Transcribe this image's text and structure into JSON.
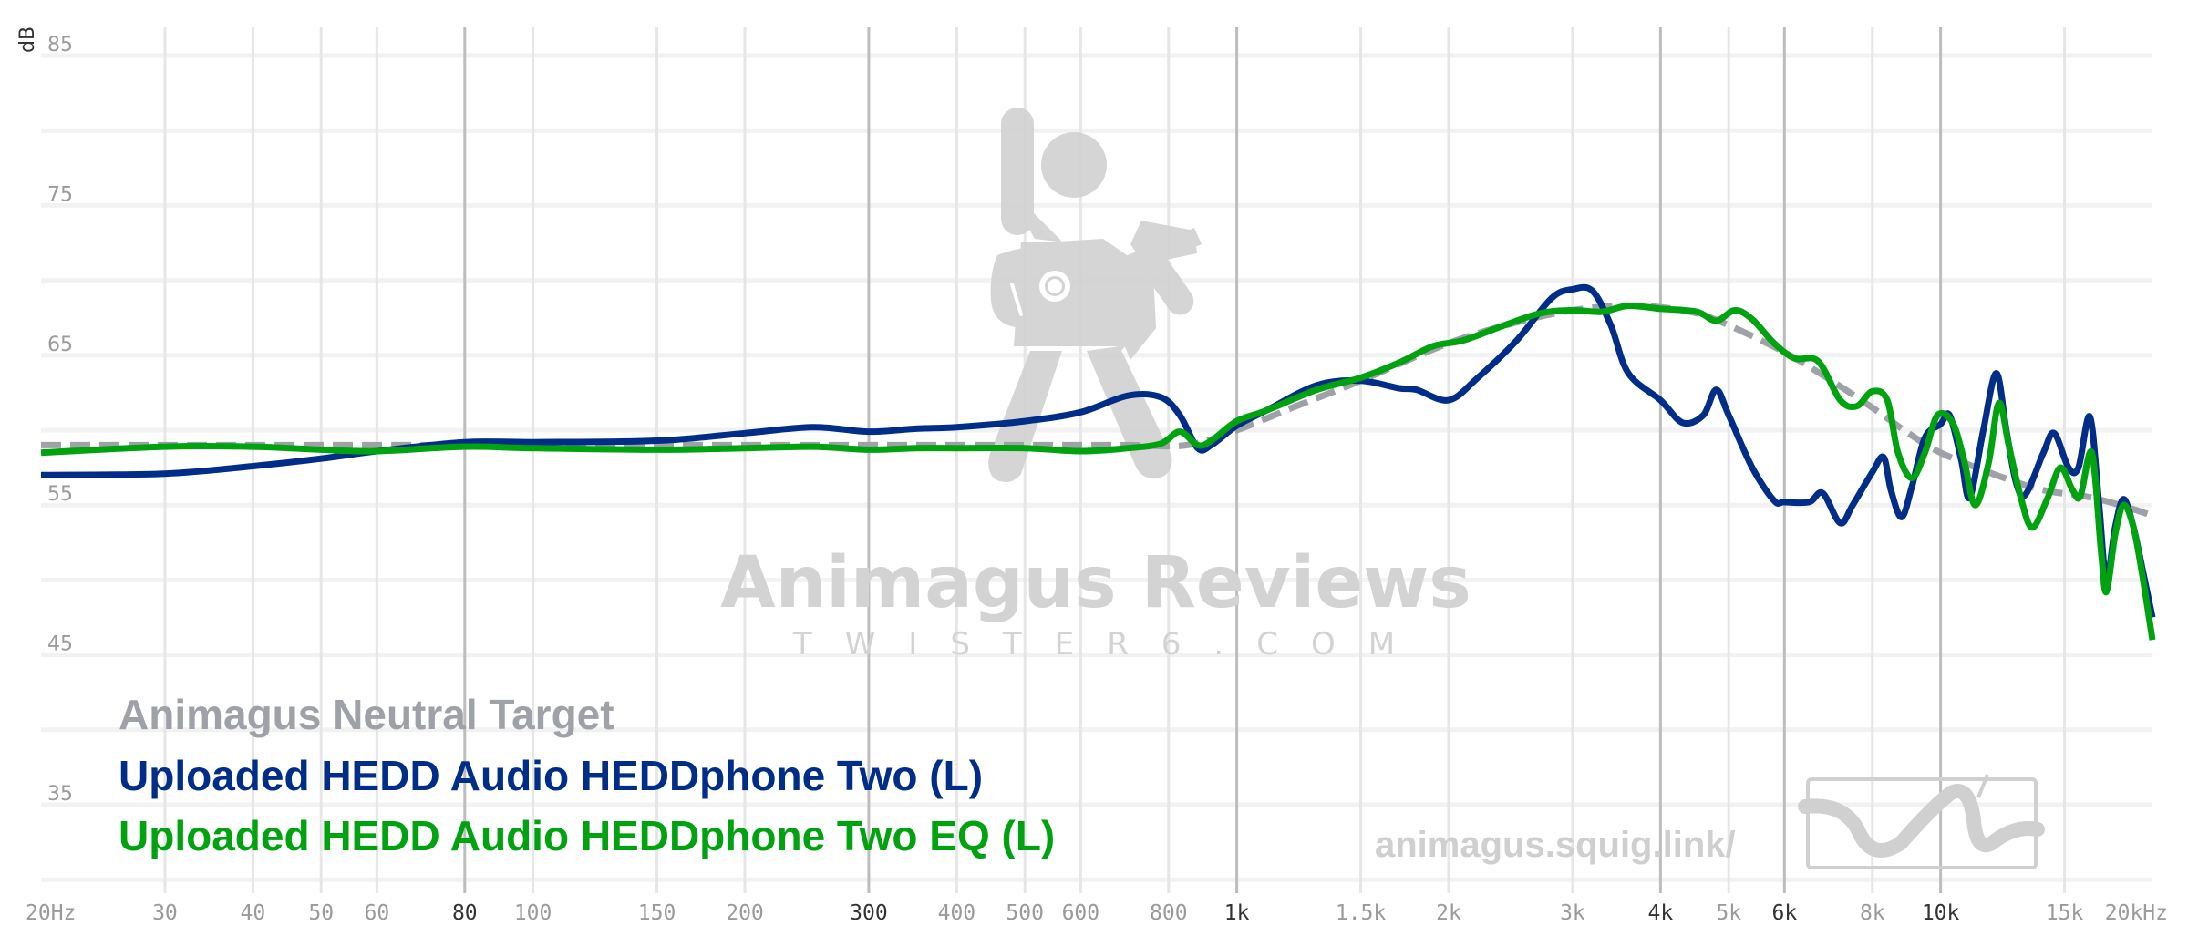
{
  "chart_data": {
    "type": "line",
    "title": "",
    "xlabel": "",
    "ylabel": "dB",
    "xscale": "log",
    "xlim": [
      20,
      20000
    ],
    "ylim": [
      30,
      85
    ],
    "grid": true,
    "y_ticks": [
      85,
      75,
      65,
      55,
      45,
      35
    ],
    "y_gridlines": [
      85,
      80,
      75,
      70,
      65,
      60,
      55,
      50,
      45,
      40,
      35,
      30
    ],
    "x_ticks": [
      {
        "f": 20,
        "label": "20Hz",
        "major": false
      },
      {
        "f": 30,
        "label": "30",
        "major": false
      },
      {
        "f": 40,
        "label": "40",
        "major": false
      },
      {
        "f": 50,
        "label": "50",
        "major": false
      },
      {
        "f": 60,
        "label": "60",
        "major": false
      },
      {
        "f": 80,
        "label": "80",
        "major": true
      },
      {
        "f": 100,
        "label": "100",
        "major": false
      },
      {
        "f": 150,
        "label": "150",
        "major": false
      },
      {
        "f": 200,
        "label": "200",
        "major": false
      },
      {
        "f": 300,
        "label": "300",
        "major": true
      },
      {
        "f": 400,
        "label": "400",
        "major": false
      },
      {
        "f": 500,
        "label": "500",
        "major": false
      },
      {
        "f": 600,
        "label": "600",
        "major": false
      },
      {
        "f": 800,
        "label": "800",
        "major": false
      },
      {
        "f": 1000,
        "label": "1k",
        "major": true
      },
      {
        "f": 1500,
        "label": "1.5k",
        "major": false
      },
      {
        "f": 2000,
        "label": "2k",
        "major": false
      },
      {
        "f": 3000,
        "label": "3k",
        "major": false
      },
      {
        "f": 4000,
        "label": "4k",
        "major": true
      },
      {
        "f": 5000,
        "label": "5k",
        "major": false
      },
      {
        "f": 6000,
        "label": "6k",
        "major": true
      },
      {
        "f": 8000,
        "label": "8k",
        "major": false
      },
      {
        "f": 10000,
        "label": "10k",
        "major": true
      },
      {
        "f": 15000,
        "label": "15k",
        "major": false
      },
      {
        "f": 20000,
        "label": "20kHz",
        "major": false
      }
    ],
    "legend_position": "bottom-left",
    "series": [
      {
        "name": "Animagus Neutral Target",
        "color": "#9ea1a8",
        "dashed": true,
        "points": [
          [
            20,
            59.0
          ],
          [
            50,
            59.0
          ],
          [
            100,
            59.0
          ],
          [
            200,
            59.0
          ],
          [
            300,
            59.0
          ],
          [
            500,
            59.0
          ],
          [
            700,
            59.0
          ],
          [
            850,
            59.0
          ],
          [
            1000,
            60.0
          ],
          [
            1200,
            61.5
          ],
          [
            1500,
            63.3
          ],
          [
            2000,
            65.8
          ],
          [
            2500,
            67.2
          ],
          [
            3000,
            68.0
          ],
          [
            3500,
            68.3
          ],
          [
            4000,
            68.2
          ],
          [
            4500,
            67.8
          ],
          [
            5000,
            67.0
          ],
          [
            6000,
            65.2
          ],
          [
            7000,
            63.3
          ],
          [
            8000,
            61.5
          ],
          [
            9000,
            59.8
          ],
          [
            10000,
            58.5
          ],
          [
            12000,
            57.0
          ],
          [
            14000,
            56.0
          ],
          [
            16000,
            55.6
          ],
          [
            18000,
            55.0
          ],
          [
            20000,
            54.3
          ]
        ]
      },
      {
        "name": "Uploaded HEDD Audio HEDDphone Two (L)",
        "color": "#002d87",
        "dashed": false,
        "points": [
          [
            20,
            57.0
          ],
          [
            30,
            57.1
          ],
          [
            40,
            57.6
          ],
          [
            50,
            58.1
          ],
          [
            60,
            58.6
          ],
          [
            80,
            59.2
          ],
          [
            100,
            59.2
          ],
          [
            150,
            59.3
          ],
          [
            200,
            59.8
          ],
          [
            250,
            60.2
          ],
          [
            300,
            59.9
          ],
          [
            350,
            60.1
          ],
          [
            400,
            60.2
          ],
          [
            500,
            60.6
          ],
          [
            600,
            61.2
          ],
          [
            700,
            62.3
          ],
          [
            780,
            62.2
          ],
          [
            830,
            61.0
          ],
          [
            880,
            58.8
          ],
          [
            920,
            59.0
          ],
          [
            1000,
            60.3
          ],
          [
            1100,
            61.3
          ],
          [
            1300,
            63.0
          ],
          [
            1500,
            63.3
          ],
          [
            1700,
            62.8
          ],
          [
            1800,
            62.7
          ],
          [
            2000,
            62.0
          ],
          [
            2200,
            63.5
          ],
          [
            2500,
            66.0
          ],
          [
            2800,
            68.8
          ],
          [
            3000,
            69.4
          ],
          [
            3200,
            69.3
          ],
          [
            3400,
            67.0
          ],
          [
            3600,
            63.8
          ],
          [
            4000,
            62.0
          ],
          [
            4300,
            60.5
          ],
          [
            4600,
            61.0
          ],
          [
            4800,
            62.7
          ],
          [
            5000,
            61.0
          ],
          [
            5400,
            57.5
          ],
          [
            5800,
            55.3
          ],
          [
            6000,
            55.2
          ],
          [
            6500,
            55.2
          ],
          [
            6800,
            55.8
          ],
          [
            7200,
            53.8
          ],
          [
            7500,
            55.0
          ],
          [
            8000,
            57.2
          ],
          [
            8300,
            58.2
          ],
          [
            8500,
            56.0
          ],
          [
            8800,
            54.2
          ],
          [
            9100,
            56.2
          ],
          [
            9500,
            59.5
          ],
          [
            10000,
            60.4
          ],
          [
            10300,
            61.0
          ],
          [
            10700,
            58.0
          ],
          [
            11000,
            55.5
          ],
          [
            11500,
            60.0
          ],
          [
            12000,
            63.8
          ],
          [
            12400,
            60.0
          ],
          [
            12800,
            56.5
          ],
          [
            13200,
            55.7
          ],
          [
            14000,
            58.5
          ],
          [
            14500,
            59.8
          ],
          [
            15200,
            57.5
          ],
          [
            15700,
            57.5
          ],
          [
            16300,
            60.9
          ],
          [
            16800,
            55.0
          ],
          [
            17200,
            50.0
          ],
          [
            17700,
            53.5
          ],
          [
            18200,
            55.4
          ],
          [
            18800,
            53.5
          ],
          [
            19400,
            50.5
          ],
          [
            20000,
            47.5
          ]
        ]
      },
      {
        "name": "Uploaded HEDD Audio HEDDphone Two EQ (L)",
        "color": "#00a30f",
        "dashed": false,
        "points": [
          [
            20,
            58.5
          ],
          [
            30,
            58.9
          ],
          [
            40,
            58.9
          ],
          [
            50,
            58.7
          ],
          [
            60,
            58.6
          ],
          [
            80,
            58.9
          ],
          [
            100,
            58.8
          ],
          [
            150,
            58.7
          ],
          [
            200,
            58.8
          ],
          [
            250,
            58.9
          ],
          [
            300,
            58.7
          ],
          [
            350,
            58.8
          ],
          [
            400,
            58.8
          ],
          [
            500,
            58.8
          ],
          [
            600,
            58.6
          ],
          [
            700,
            58.8
          ],
          [
            780,
            59.1
          ],
          [
            830,
            59.9
          ],
          [
            880,
            59.0
          ],
          [
            920,
            59.3
          ],
          [
            1000,
            60.6
          ],
          [
            1100,
            61.3
          ],
          [
            1300,
            62.7
          ],
          [
            1500,
            63.5
          ],
          [
            1700,
            64.5
          ],
          [
            1900,
            65.6
          ],
          [
            2100,
            66.0
          ],
          [
            2400,
            67.0
          ],
          [
            2700,
            67.8
          ],
          [
            3000,
            68.0
          ],
          [
            3300,
            67.9
          ],
          [
            3600,
            68.3
          ],
          [
            4000,
            68.1
          ],
          [
            4500,
            67.9
          ],
          [
            4800,
            67.3
          ],
          [
            5100,
            68.0
          ],
          [
            5400,
            67.4
          ],
          [
            5800,
            65.8
          ],
          [
            6200,
            64.8
          ],
          [
            6700,
            64.6
          ],
          [
            7200,
            62.0
          ],
          [
            7600,
            61.6
          ],
          [
            8000,
            62.6
          ],
          [
            8400,
            62.0
          ],
          [
            8700,
            58.5
          ],
          [
            9100,
            56.8
          ],
          [
            9500,
            58.5
          ],
          [
            9900,
            61.0
          ],
          [
            10400,
            60.5
          ],
          [
            10800,
            58.0
          ],
          [
            11200,
            55.0
          ],
          [
            11700,
            57.8
          ],
          [
            12100,
            61.8
          ],
          [
            12500,
            59.0
          ],
          [
            13000,
            55.5
          ],
          [
            13500,
            53.5
          ],
          [
            14200,
            55.5
          ],
          [
            14800,
            57.5
          ],
          [
            15400,
            56.0
          ],
          [
            15800,
            55.6
          ],
          [
            16400,
            58.5
          ],
          [
            16900,
            52.0
          ],
          [
            17200,
            49.2
          ],
          [
            17700,
            53.0
          ],
          [
            18200,
            55.0
          ],
          [
            18800,
            53.5
          ],
          [
            19400,
            50.0
          ],
          [
            20000,
            46.0
          ]
        ]
      }
    ]
  },
  "axis": {
    "y_unit": "dB"
  },
  "legend": [
    {
      "label": "Animagus Neutral Target",
      "color": "#9ea1a8"
    },
    {
      "label": "Uploaded HEDD Audio HEDDphone Two (L)",
      "color": "#002d87"
    },
    {
      "label": "Uploaded HEDD Audio HEDDphone Two EQ (L)",
      "color": "#00a30f"
    }
  ],
  "watermark": {
    "title": "Animagus Reviews",
    "subtitle": "TWISTER6.COM",
    "url": "animagus.squig.link/"
  }
}
